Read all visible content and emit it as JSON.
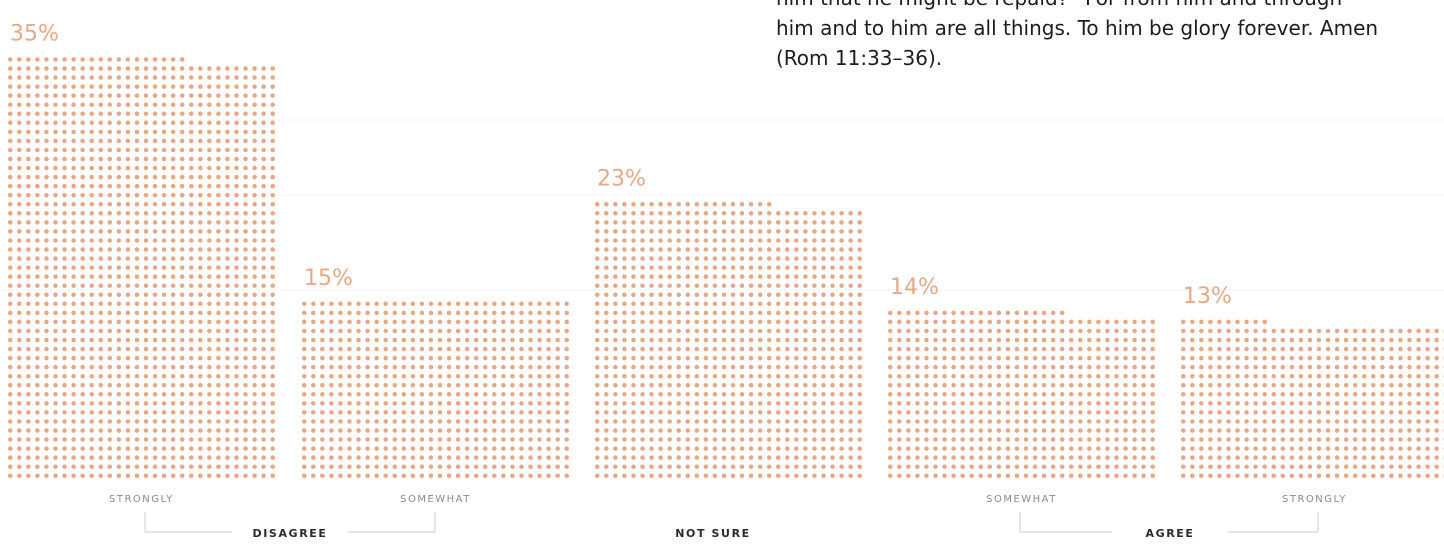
{
  "quote": {
    "lines": [
      "him that he might be repaid?” For from him and through",
      "him and to him are all things. To him be glory forever. Amen",
      "(Rom 11:33–36)."
    ]
  },
  "colors": {
    "dot": "#e8a683",
    "value_label": "#e6a887",
    "category_label": "#8a8a8a",
    "group_label": "#2b2b2b",
    "bracket": "#d5d5d5",
    "gridline": "#f3f3f3"
  },
  "chart_data": {
    "type": "bar",
    "encoding": "dot-matrix",
    "categories": [
      "STRONGLY",
      "SOMEWHAT",
      "",
      "SOMEWHAT",
      "STRONGLY"
    ],
    "values": [
      35,
      15,
      23,
      14,
      13
    ],
    "value_labels": [
      "35%",
      "15%",
      "23%",
      "14%",
      "13%"
    ],
    "groups": [
      {
        "label": "DISAGREE",
        "categories": [
          0,
          1
        ]
      },
      {
        "label": "NOT SURE",
        "categories": [
          2
        ]
      },
      {
        "label": "AGREE",
        "categories": [
          3,
          4
        ]
      }
    ],
    "title": "",
    "xlabel": "",
    "ylabel": "",
    "grid": true,
    "legend": "none"
  }
}
